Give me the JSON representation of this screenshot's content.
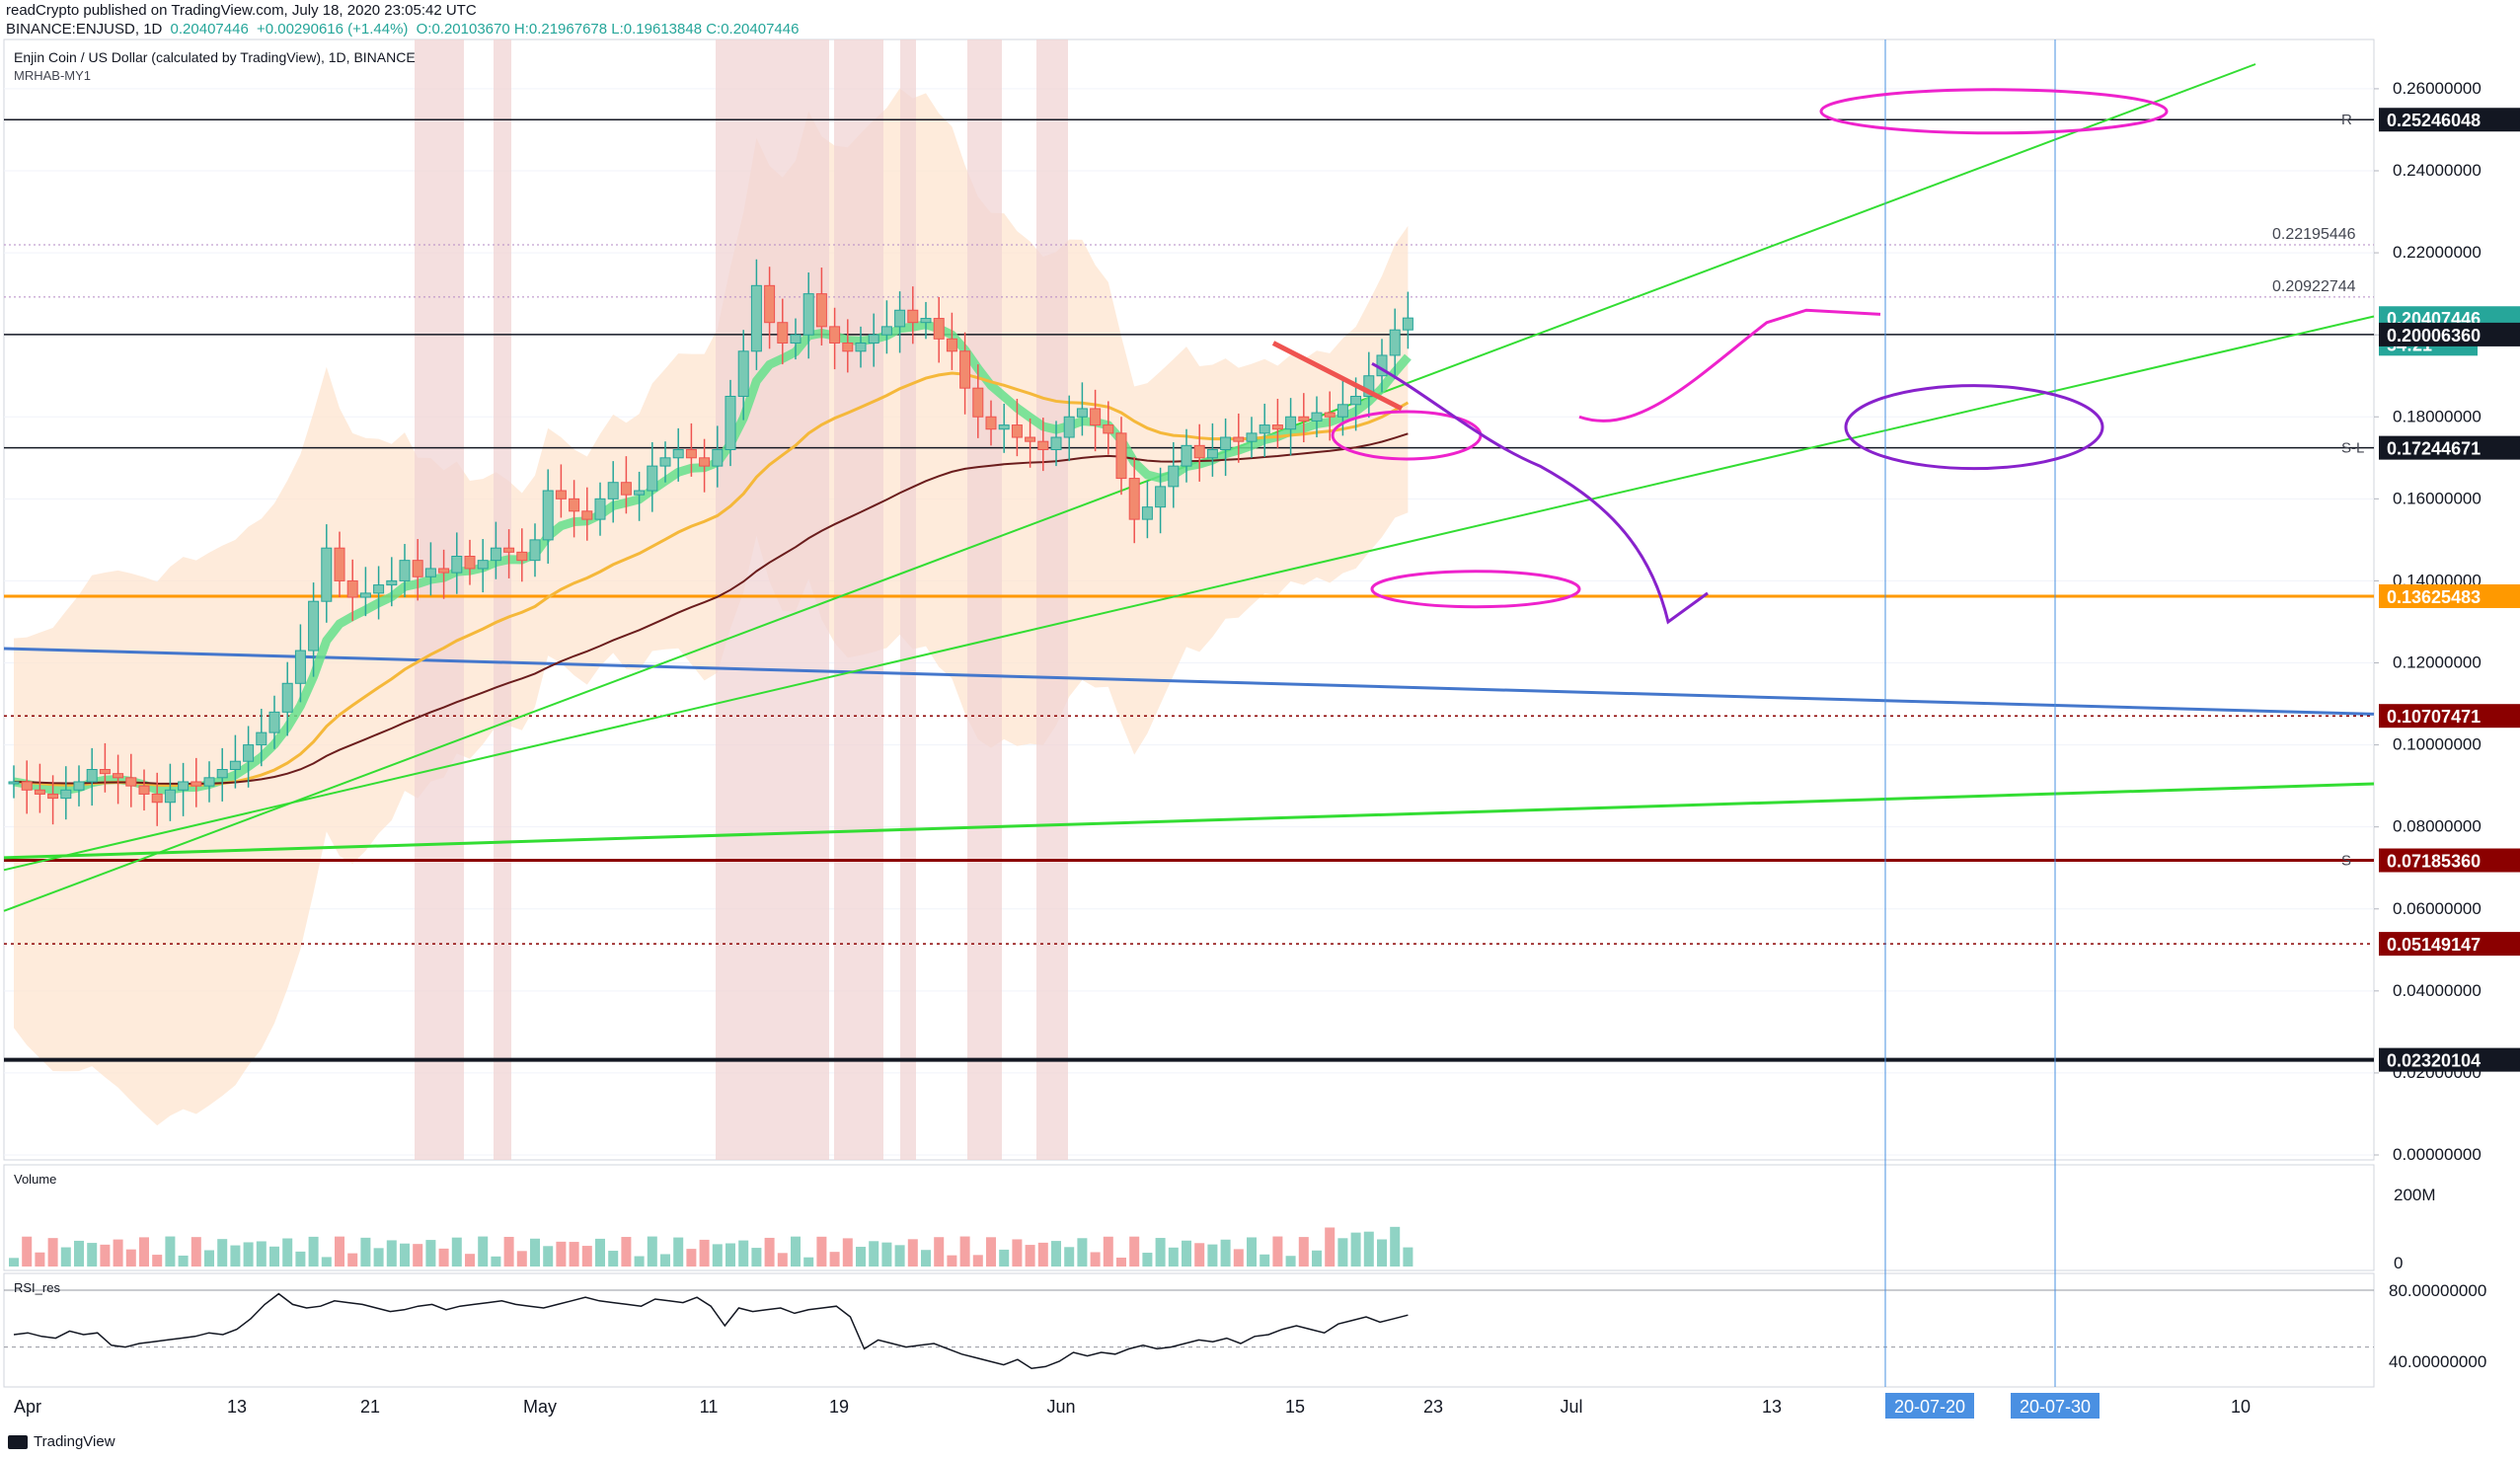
{
  "header": {
    "line1": "readCrypto published on TradingView.com, July 18, 2020 23:05:42 UTC",
    "line2_prefix": "BINANCE:ENJUSD, 1D",
    "line2_value": "0.20407446",
    "line2_change": "+0.00290616 (+1.44%)",
    "line2_ohlc": "O:0.20103670 H:0.21967678 L:0.19613848 C:0.20407446"
  },
  "chart_title": "Enjin Coin / US Dollar (calculated by TradingView), 1D, BINANCE",
  "indicator_label": "MRHAB-MY1",
  "volume_label": "Volume",
  "rsi_label": "RSI_res",
  "footer_brand": "TradingView",
  "colors": {
    "up": "#26a69a",
    "down": "#ef5350",
    "up_ha": "#79c9b4",
    "down_ha": "#f28a6e",
    "band": "#fde4cf",
    "blue_line": "#4477cc",
    "green_line": "#33dd33",
    "orange_line": "#ff9900",
    "magenta": "#ee22cc",
    "purple": "#8822cc",
    "maroon": "#8b0000",
    "highlight": "#f0d4d4"
  },
  "chart_data": {
    "type": "candlestick",
    "title": "Enjin Coin / US Dollar (calculated by TradingView), 1D, BINANCE",
    "x_axis_labels": [
      "Apr",
      "13",
      "21",
      "May",
      "11",
      "19",
      "Jun",
      "15",
      "23",
      "Jul",
      "13",
      "20-07-20",
      "20-07-30",
      "10"
    ],
    "y_ticks": [
      "0.26000000",
      "0.24000000",
      "0.22000000",
      "0.20",
      "0.18000000",
      "0.16000000",
      "0.14000000",
      "0.12000000",
      "0.10000000",
      "0.08000000",
      "0.06000000",
      "0.04000000",
      "0.02000000",
      "0.00000000"
    ],
    "ylim": [
      0.0,
      0.266
    ],
    "price_labels": [
      {
        "text": "0.25246048",
        "value": 0.25246048,
        "bg": "#131722",
        "marker": "R"
      },
      {
        "text": "0.20407446",
        "value": 0.20407446,
        "bg": "#26a69a",
        "marker": ""
      },
      {
        "text": "54:21",
        "value": 0.1978,
        "bg": "#26a69a",
        "marker": ""
      },
      {
        "text": "0.20006360",
        "value": 0.2000636,
        "bg": "#131722",
        "marker": ""
      },
      {
        "text": "0.17244671",
        "value": 0.17244671,
        "bg": "#131722",
        "marker": "S-L"
      },
      {
        "text": "0.13625483",
        "value": 0.13625483,
        "bg": "#ff9900",
        "marker": ""
      },
      {
        "text": "0.10707471",
        "value": 0.10707471,
        "bg": "#8b0000",
        "marker": ""
      },
      {
        "text": "0.07185360",
        "value": 0.0718536,
        "bg": "#8b0000",
        "marker": "S"
      },
      {
        "text": "0.05149147",
        "value": 0.05149147,
        "bg": "#8b0000",
        "marker": ""
      },
      {
        "text": "0.02320104",
        "value": 0.02320104,
        "bg": "#131722",
        "marker": ""
      }
    ],
    "annotations": [
      {
        "text": "0.22195446",
        "value": 0.22195446
      },
      {
        "text": "0.20922744",
        "value": 0.20922744
      }
    ],
    "series_close": [
      0.091,
      0.089,
      0.088,
      0.087,
      0.089,
      0.091,
      0.094,
      0.093,
      0.092,
      0.09,
      0.088,
      0.086,
      0.089,
      0.091,
      0.09,
      0.092,
      0.094,
      0.096,
      0.1,
      0.103,
      0.108,
      0.115,
      0.123,
      0.135,
      0.148,
      0.14,
      0.136,
      0.137,
      0.139,
      0.14,
      0.145,
      0.141,
      0.143,
      0.142,
      0.146,
      0.143,
      0.145,
      0.148,
      0.147,
      0.145,
      0.15,
      0.162,
      0.16,
      0.157,
      0.155,
      0.16,
      0.164,
      0.161,
      0.162,
      0.168,
      0.17,
      0.172,
      0.17,
      0.168,
      0.172,
      0.185,
      0.196,
      0.212,
      0.203,
      0.198,
      0.2,
      0.21,
      0.202,
      0.198,
      0.196,
      0.198,
      0.2,
      0.202,
      0.206,
      0.203,
      0.204,
      0.199,
      0.196,
      0.187,
      0.18,
      0.177,
      0.178,
      0.175,
      0.174,
      0.172,
      0.175,
      0.18,
      0.182,
      0.178,
      0.176,
      0.165,
      0.155,
      0.158,
      0.163,
      0.168,
      0.173,
      0.17,
      0.172,
      0.175,
      0.174,
      0.176,
      0.178,
      0.177,
      0.18,
      0.179,
      0.181,
      0.18,
      0.183,
      0.185,
      0.19,
      0.195,
      0.2012,
      0.2041
    ],
    "volume_ylabels": [
      "200M",
      "0"
    ],
    "rsi_ylabels": [
      "80.00000000",
      "40.00000000"
    ],
    "rsi_values": [
      55,
      56,
      54,
      53,
      57,
      55,
      56,
      49,
      48,
      50,
      51,
      52,
      53,
      54,
      56,
      55,
      58,
      64,
      72,
      78,
      72,
      70,
      71,
      74,
      73,
      72,
      70,
      68,
      69,
      71,
      72,
      69,
      71,
      72,
      73,
      74,
      72,
      71,
      70,
      72,
      74,
      76,
      74,
      73,
      72,
      71,
      75,
      74,
      73,
      76,
      71,
      60,
      70,
      68,
      69,
      70,
      67,
      69,
      70,
      71,
      65,
      47,
      52,
      50,
      48,
      49,
      50,
      47,
      44,
      42,
      40,
      38,
      41,
      36,
      37,
      40,
      45,
      43,
      45,
      44,
      47,
      49,
      47,
      48,
      50,
      52,
      51,
      53,
      50,
      54,
      55,
      58,
      60,
      58,
      56,
      61,
      63,
      65,
      62,
      64,
      66
    ]
  }
}
